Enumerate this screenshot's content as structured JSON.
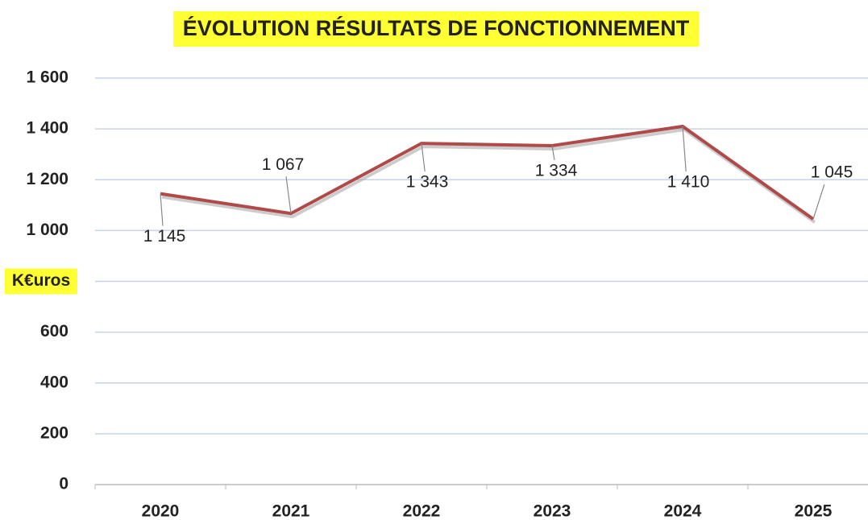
{
  "chart_data": {
    "type": "line",
    "title": "ÉVOLUTION RÉSULTATS DE FONCTIONNEMENT",
    "categories": [
      "2020",
      "2021",
      "2022",
      "2023",
      "2024",
      "2025"
    ],
    "series": [
      {
        "color": "#b04a48",
        "values": [
          1145,
          1067,
          1343,
          1334,
          1410,
          1045
        ],
        "value_labels": [
          "1 145",
          "1 067",
          "1 343",
          "1 334",
          "1 410",
          "1 045"
        ]
      }
    ],
    "ylim": [
      0,
      1600
    ],
    "yticks": [
      0,
      200,
      400,
      600,
      {
        "value": 800,
        "label": "K€uros"
      },
      {
        "value": 1000,
        "label": "1 000"
      },
      {
        "value": 1200,
        "label": "1 200"
      },
      {
        "value": 1400,
        "label": "1 400"
      },
      {
        "value": 1600,
        "label": "1 600"
      }
    ],
    "grid": true
  }
}
